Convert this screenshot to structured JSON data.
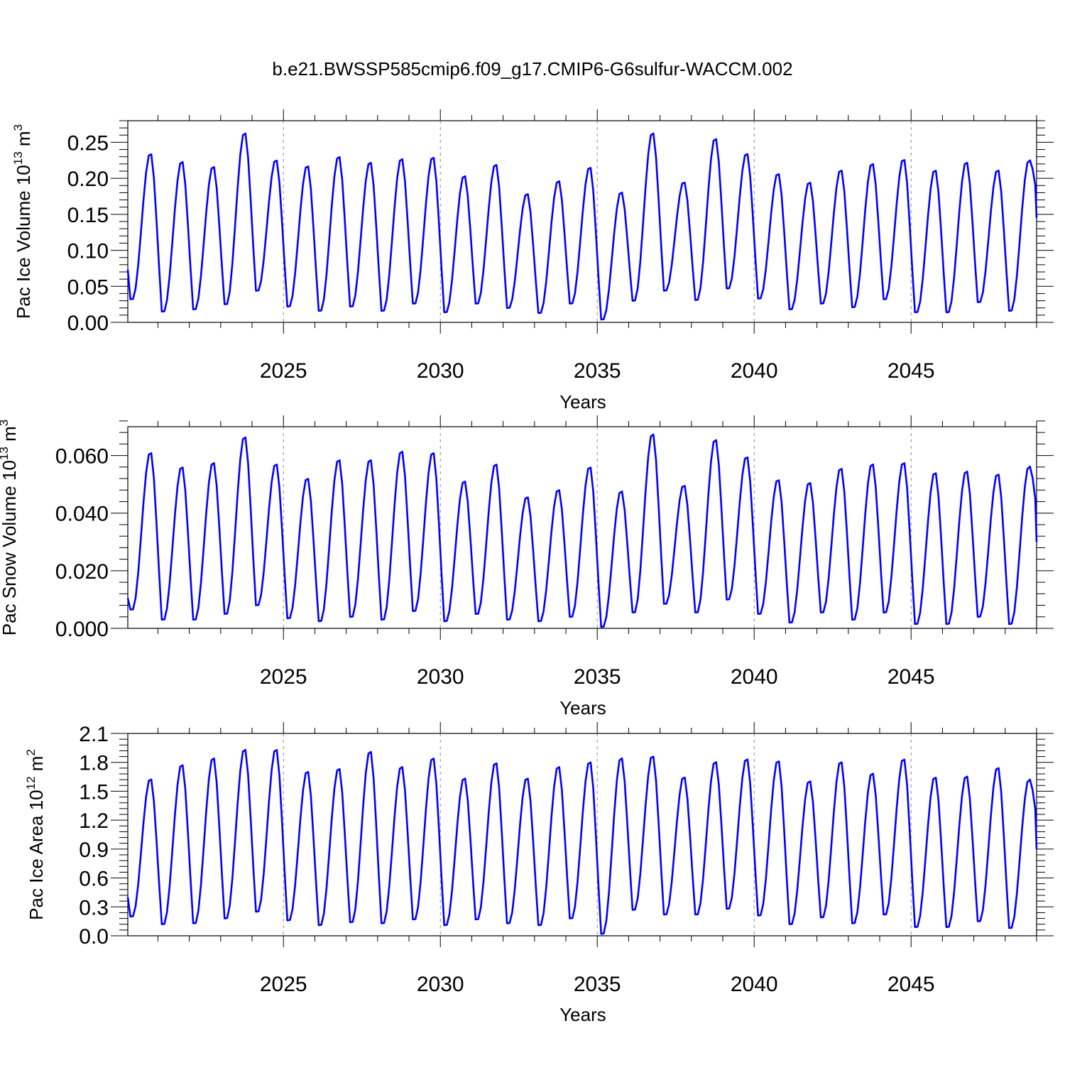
{
  "title": "b.e21.BWSSP585cmip6.f09_g17.CMIP6-G6sulfur-WACCM.002",
  "line_color": "#0000ff",
  "chart_data": [
    {
      "type": "line",
      "ylabel": "Pac Ice Volume 10",
      "ylabel_exp": "13",
      "ylabel_unit": " m",
      "ylabel_unit_exp": "3",
      "xlabel": "Years",
      "xlim": [
        2020.04,
        2049.0
      ],
      "ylim": [
        0.0,
        0.28
      ],
      "yticks": [
        0.0,
        0.05,
        0.1,
        0.15,
        0.2,
        0.25
      ],
      "yticklabels": [
        "0.00",
        "0.05",
        "0.10",
        "0.15",
        "0.20",
        "0.25"
      ],
      "xticks": [
        2025,
        2030,
        2035,
        2040,
        2045
      ],
      "xticklabels": [
        "2025",
        "2030",
        "2035",
        "2040",
        "2045"
      ],
      "grid_x": [
        2025,
        2030,
        2035,
        2040,
        2045
      ],
      "annual_peaks": [
        0.236,
        0.225,
        0.218,
        0.265,
        0.227,
        0.219,
        0.232,
        0.224,
        0.229,
        0.231,
        0.205,
        0.221,
        0.18,
        0.198,
        0.217,
        0.182,
        0.265,
        0.196,
        0.257,
        0.236,
        0.208,
        0.196,
        0.213,
        0.222,
        0.228,
        0.213,
        0.224,
        0.213,
        0.226
      ],
      "annual_minima": [
        0.032,
        0.015,
        0.018,
        0.025,
        0.044,
        0.022,
        0.016,
        0.022,
        0.016,
        0.026,
        0.014,
        0.026,
        0.02,
        0.013,
        0.026,
        0.004,
        0.03,
        0.044,
        0.031,
        0.047,
        0.033,
        0.018,
        0.026,
        0.021,
        0.032,
        0.014,
        0.014,
        0.028,
        0.016
      ],
      "start_value": 0.073,
      "end_value": 0.145
    },
    {
      "type": "line",
      "ylabel": "Pac Snow Volume 10",
      "ylabel_exp": "13",
      "ylabel_unit": " m",
      "ylabel_unit_exp": "3",
      "xlabel": "Years",
      "xlim": [
        2020.04,
        2049.0
      ],
      "ylim": [
        0.0,
        0.07
      ],
      "yticks": [
        0.0,
        0.02,
        0.04,
        0.06
      ],
      "yticklabels": [
        "0.000",
        "0.020",
        "0.040",
        "0.060"
      ],
      "xticks": [
        2025,
        2030,
        2035,
        2040,
        2045
      ],
      "xticklabels": [
        "2025",
        "2030",
        "2035",
        "2040",
        "2045"
      ],
      "grid_x": [
        2025,
        2030,
        2035,
        2040,
        2045
      ],
      "annual_peaks": [
        0.0615,
        0.0565,
        0.058,
        0.067,
        0.0575,
        0.0525,
        0.059,
        0.059,
        0.062,
        0.0615,
        0.0515,
        0.0575,
        0.046,
        0.0485,
        0.0565,
        0.048,
        0.068,
        0.05,
        0.066,
        0.06,
        0.052,
        0.051,
        0.056,
        0.0575,
        0.058,
        0.0545,
        0.055,
        0.054,
        0.0565
      ],
      "annual_minima": [
        0.0065,
        0.003,
        0.003,
        0.005,
        0.008,
        0.0035,
        0.0025,
        0.004,
        0.003,
        0.006,
        0.0025,
        0.005,
        0.003,
        0.0025,
        0.004,
        0.0005,
        0.0055,
        0.0085,
        0.0055,
        0.01,
        0.005,
        0.002,
        0.0055,
        0.003,
        0.0055,
        0.0015,
        0.0015,
        0.004,
        0.0015
      ],
      "start_value": 0.0105,
      "end_value": 0.03
    },
    {
      "type": "line",
      "ylabel": "Pac Ice Area 10",
      "ylabel_exp": "12",
      "ylabel_unit": " m",
      "ylabel_unit_exp": "2",
      "xlabel": "Years",
      "xlim": [
        2020.04,
        2049.0
      ],
      "ylim": [
        0.0,
        2.1
      ],
      "yticks": [
        0.0,
        0.3,
        0.6,
        0.9,
        1.2,
        1.5,
        1.8,
        2.1
      ],
      "yticklabels": [
        "0.0",
        "0.3",
        "0.6",
        "0.9",
        "1.2",
        "1.5",
        "1.8",
        "2.1"
      ],
      "xticks": [
        2025,
        2030,
        2035,
        2040,
        2045
      ],
      "xticklabels": [
        "2025",
        "2030",
        "2035",
        "2040",
        "2045"
      ],
      "grid_x": [
        2025,
        2030,
        2035,
        2040,
        2045
      ],
      "annual_peaks": [
        1.64,
        1.79,
        1.86,
        1.95,
        1.95,
        1.72,
        1.75,
        1.93,
        1.77,
        1.86,
        1.65,
        1.81,
        1.65,
        1.77,
        1.82,
        1.86,
        1.88,
        1.66,
        1.82,
        1.85,
        1.83,
        1.62,
        1.82,
        1.7,
        1.85,
        1.66,
        1.67,
        1.76,
        1.63
      ],
      "annual_minima": [
        0.2,
        0.12,
        0.13,
        0.18,
        0.25,
        0.16,
        0.11,
        0.14,
        0.13,
        0.17,
        0.11,
        0.17,
        0.13,
        0.11,
        0.18,
        0.02,
        0.27,
        0.22,
        0.22,
        0.28,
        0.21,
        0.12,
        0.19,
        0.13,
        0.22,
        0.09,
        0.09,
        0.15,
        0.08
      ],
      "start_value": 0.4,
      "end_value": 0.9
    }
  ]
}
